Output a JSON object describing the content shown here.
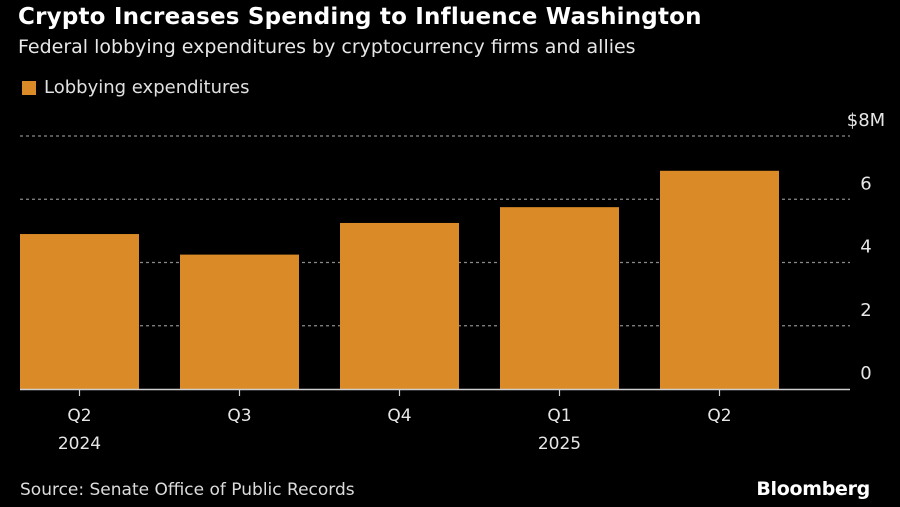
{
  "header": {
    "title": "Crypto Increases Spending to Influence Washington",
    "subtitle": "Federal lobbying expenditures by cryptocurrency firms and allies"
  },
  "footer": {
    "source": "Source: Senate Office of Public Records",
    "brand": "Bloomberg"
  },
  "colors": {
    "bar": "#da8a27",
    "background": "#000000",
    "grid": "#8a8a8a",
    "axis": "#cfcfcf",
    "text": "#e6e6e6"
  },
  "chart_data": {
    "type": "bar",
    "title": "Crypto Increases Spending to Influence Washington",
    "subtitle": "Federal lobbying expenditures by cryptocurrency firms and allies",
    "categories": [
      "Q2 2024",
      "Q3 2024",
      "Q4 2024",
      "Q1 2025",
      "Q2 2025"
    ],
    "category_labels": [
      {
        "line1": "Q2",
        "line2": "2024"
      },
      {
        "line1": "Q3",
        "line2": ""
      },
      {
        "line1": "Q4",
        "line2": ""
      },
      {
        "line1": "Q1",
        "line2": "2025"
      },
      {
        "line1": "Q2",
        "line2": ""
      }
    ],
    "series": [
      {
        "name": "Lobbying expenditures",
        "values": [
          4.9,
          4.25,
          5.25,
          5.75,
          6.9
        ]
      }
    ],
    "xlabel": "",
    "ylabel": "",
    "unit": "$M",
    "ylim": [
      0,
      8
    ],
    "yticks": [
      {
        "value": 0,
        "label": "0"
      },
      {
        "value": 2,
        "label": "2"
      },
      {
        "value": 4,
        "label": "4"
      },
      {
        "value": 6,
        "label": "6"
      },
      {
        "value": 8,
        "label": "$8M"
      }
    ],
    "grid": true,
    "y_axis_side": "right",
    "legend": {
      "position": "top-left",
      "entries": [
        "Lobbying expenditures"
      ]
    },
    "source": "Source: Senate Office of Public Records"
  }
}
